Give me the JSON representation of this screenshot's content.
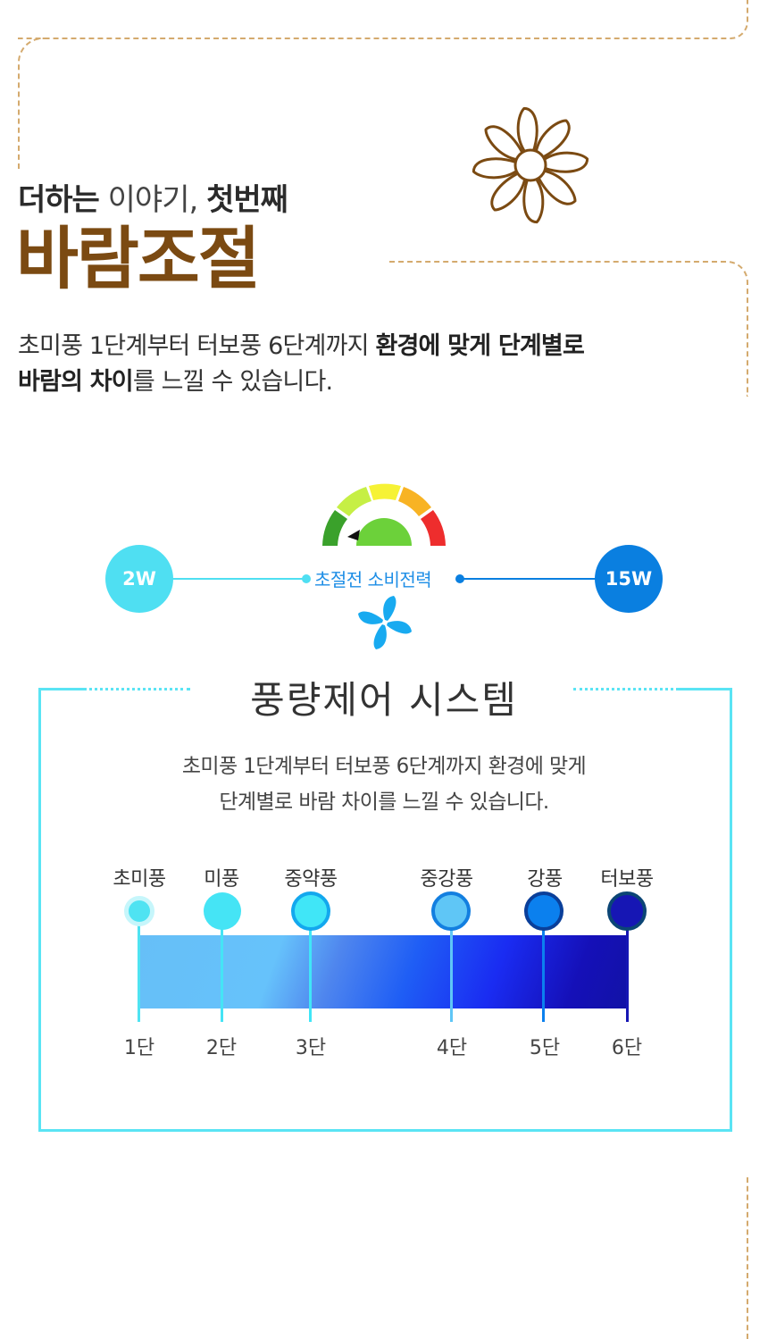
{
  "header": {
    "subtitle_bold_1": "더하는",
    "subtitle_light": "이야기,",
    "subtitle_bold_2": "첫번째",
    "main_title": "바람조절",
    "desc_line1_plain": "초미풍 1단계부터 터보풍 6단계까지 ",
    "desc_line1_bold": "환경에 맞게 단계별로",
    "desc_line2_bold": "바람의 차이",
    "desc_line2_plain": "를 느낄 수 있습니다.",
    "icon": "fan-icon",
    "brand_color": "#7b4a12"
  },
  "energy": {
    "min_label": "2W",
    "max_label": "15W",
    "center_label": "초절전 소비전력",
    "gauge_icon": "gauge-icon",
    "fan_icon": "pinwheel-fan-icon",
    "min_color": "#4fdff2",
    "max_color": "#0a7fe0"
  },
  "system": {
    "title": "풍량제어 시스템",
    "desc_line1": "초미풍 1단계부터 터보풍 6단계까지 환경에 맞게",
    "desc_line2": "단계별로 바람 차이를 느낄 수 있습니다.",
    "levels": [
      {
        "name": "초미풍",
        "step": "1단",
        "color": "#4fe3f2"
      },
      {
        "name": "미풍",
        "step": "2단",
        "color": "#45e4f5"
      },
      {
        "name": "중약풍",
        "step": "3단",
        "color": "#40e6f7"
      },
      {
        "name": "중강풍",
        "step": "4단",
        "color": "#5fc6f6"
      },
      {
        "name": "강풍",
        "step": "5단",
        "color": "#0b80ee"
      },
      {
        "name": "터보풍",
        "step": "6단",
        "color": "#1616b4"
      }
    ]
  }
}
